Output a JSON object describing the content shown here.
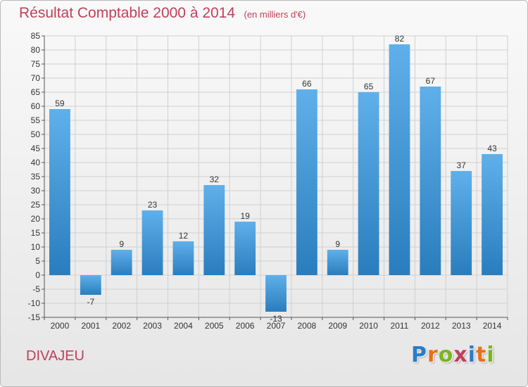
{
  "header": {
    "title": "Résultat Comptable 2000 à 2014",
    "unit_note": "(en milliers d'€)"
  },
  "commune": "DIVAJEU",
  "logo": {
    "text": "Proxiti",
    "letter_colors": [
      "#2a7cc7",
      "#e8701a",
      "#7ab51d",
      "#c0405a",
      "#2a7cc7",
      "#e8701a",
      "#7ab51d"
    ]
  },
  "colors": {
    "title": "#c0405a",
    "bar_light": "#5fb0ea",
    "bar_dark": "#2a7dbd",
    "grid": "#d0d0d0"
  },
  "chart_data": {
    "type": "bar",
    "title": "Résultat Comptable 2000 à 2014",
    "subtitle": "(en milliers d'€)",
    "categories": [
      "2000",
      "2001",
      "2002",
      "2003",
      "2004",
      "2005",
      "2006",
      "2007",
      "2008",
      "2009",
      "2010",
      "2011",
      "2012",
      "2013",
      "2014"
    ],
    "values": [
      59,
      -7,
      9,
      23,
      12,
      32,
      19,
      -13,
      66,
      9,
      65,
      82,
      67,
      37,
      43
    ],
    "data_labels": [
      "59",
      "-7",
      "9",
      "23",
      "12",
      "32",
      "19",
      "-13",
      "66",
      "9",
      "65",
      "82",
      "67",
      "37",
      "43"
    ],
    "ylim": [
      -15,
      85
    ],
    "yticks": [
      -15,
      -10,
      -5,
      0,
      5,
      10,
      15,
      20,
      25,
      30,
      35,
      40,
      45,
      50,
      55,
      60,
      65,
      70,
      75,
      80,
      85
    ],
    "grid": true,
    "legend": "none"
  }
}
